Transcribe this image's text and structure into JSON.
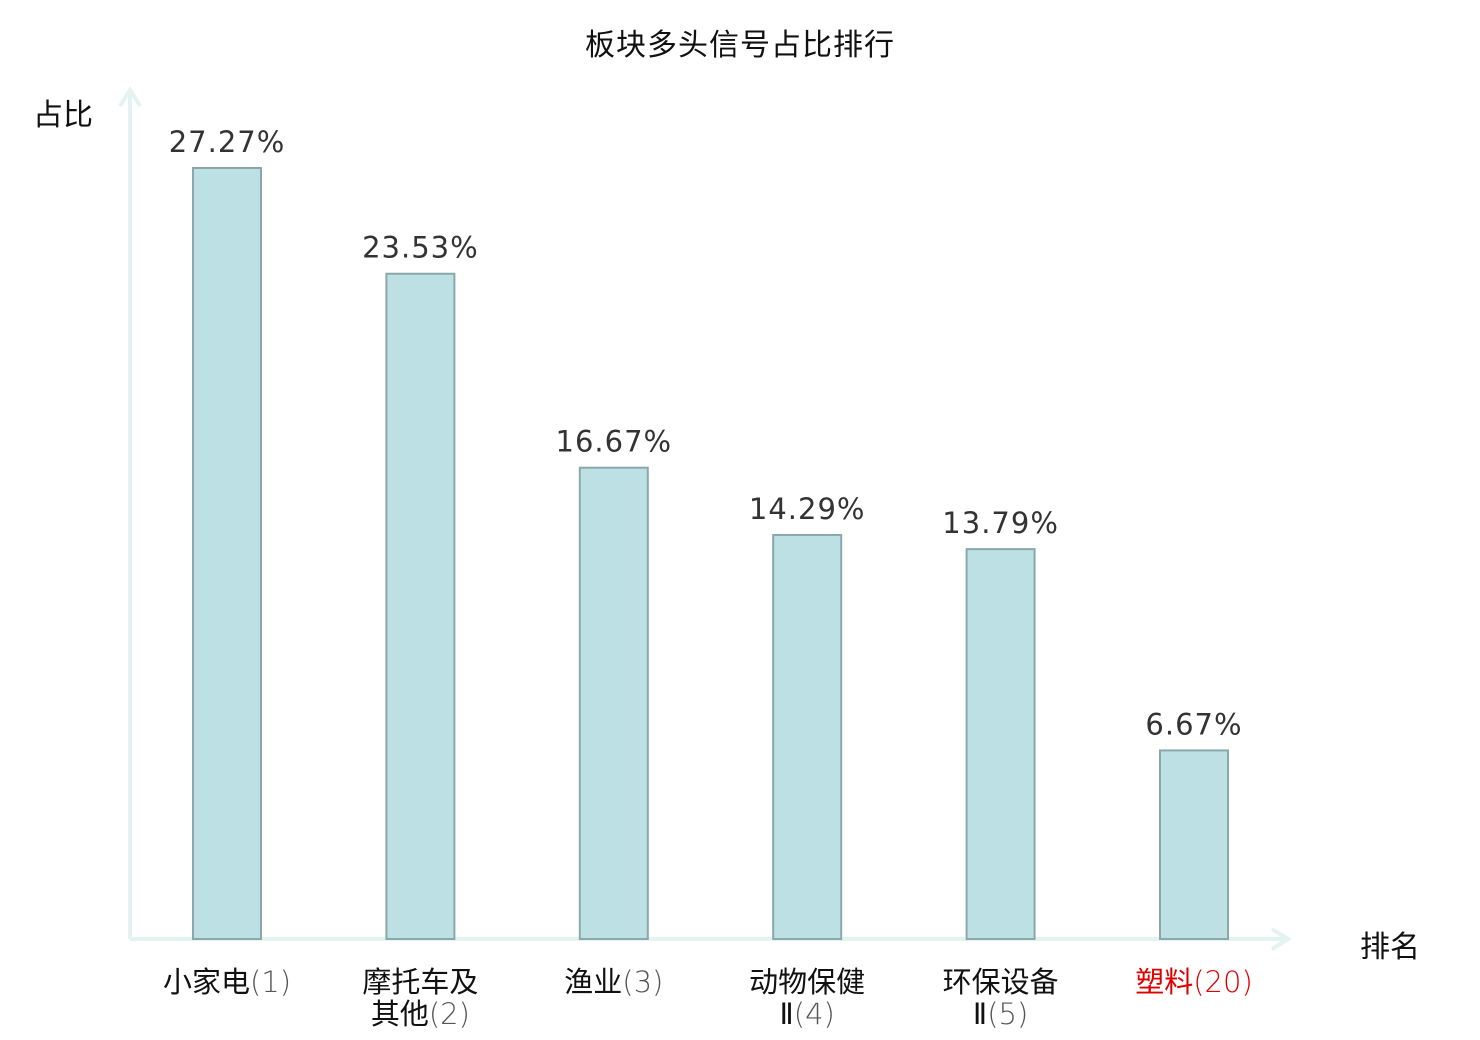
{
  "chart_data": {
    "type": "bar",
    "title": "板块多头信号占比排行",
    "ylabel": "占比",
    "xlabel": "排名",
    "ylim": [
      0,
      30
    ],
    "grid": false,
    "categories": [
      {
        "name_lines": [
          "小家电"
        ],
        "rank": "(1)",
        "highlight": false
      },
      {
        "name_lines": [
          "摩托车及",
          "其他"
        ],
        "rank": "(2)",
        "highlight": false
      },
      {
        "name_lines": [
          "渔业"
        ],
        "rank": "(3)",
        "highlight": false
      },
      {
        "name_lines": [
          "动物保健",
          "Ⅱ"
        ],
        "rank": "(4)",
        "highlight": false
      },
      {
        "name_lines": [
          "环保设备",
          "Ⅱ"
        ],
        "rank": "(5)",
        "highlight": false
      },
      {
        "name_lines": [
          "塑料"
        ],
        "rank": "(20)",
        "highlight": true
      }
    ],
    "values": [
      27.27,
      23.53,
      16.67,
      14.29,
      13.79,
      6.67
    ],
    "value_labels": [
      "27.27%",
      "23.53%",
      "16.67%",
      "14.29%",
      "13.79%",
      "6.67%"
    ],
    "colors": {
      "bar_fill": "#bce0e3",
      "bar_stroke": "#8aa8aa",
      "axis": "#e2f3f1",
      "highlight_text": "#e00000"
    }
  }
}
